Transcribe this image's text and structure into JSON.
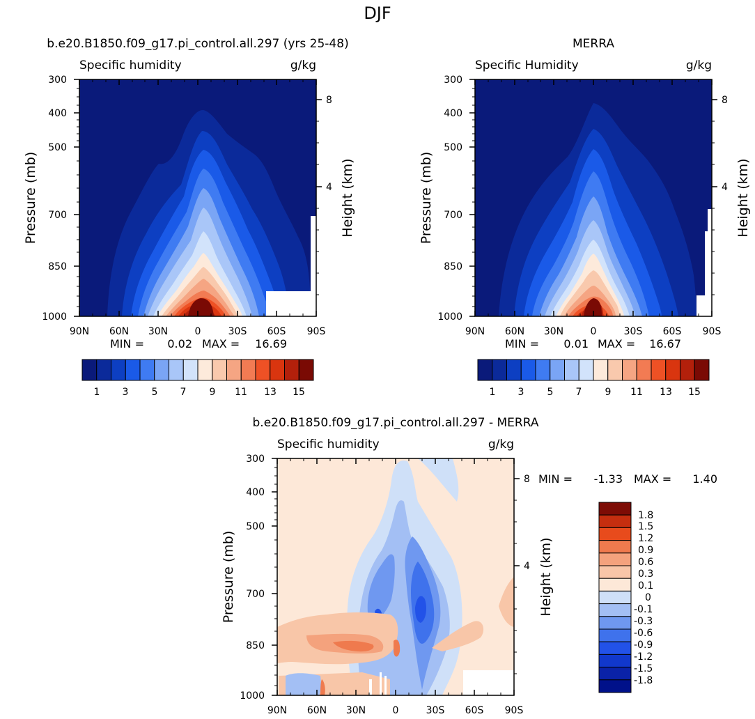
{
  "figure_title": "DJF",
  "colors": {
    "abs_palette": [
      "#0a1a7a",
      "#0b2a9a",
      "#0d3fc2",
      "#1a5ae8",
      "#3f7bf2",
      "#7aa5f5",
      "#a9c6f8",
      "#d2e3fb",
      "#fdeadb",
      "#f9c9ad",
      "#f5a583",
      "#f27b53",
      "#ee5125",
      "#d9350f",
      "#b3200b",
      "#7a0a04"
    ],
    "diff_palette": [
      "#00118a",
      "#0a22a8",
      "#1138cc",
      "#2252e8",
      "#3f72ec",
      "#6f98f0",
      "#a3bff4",
      "#cfe0f8",
      "#fde8d8",
      "#f8c6a8",
      "#f4a27d",
      "#ef7a4e",
      "#e84b1c",
      "#c52e0f",
      "#7d0c05"
    ]
  },
  "panels": [
    {
      "id": "model",
      "title": "b.e20.B1850.f09_g17.pi_control.all.297 (yrs 25-48)",
      "left_label": "Specific humidity",
      "right_label": "g/kg",
      "y_label": "Pressure (mb)",
      "y2_label": "Height (km)",
      "stats": {
        "min_label": "MIN =",
        "min": "0.02",
        "max_label": "MAX =",
        "max": "16.69"
      },
      "colorbar_ticks": [
        "1",
        "3",
        "5",
        "7",
        "9",
        "11",
        "13",
        "15"
      ]
    },
    {
      "id": "merra",
      "title": "MERRA",
      "left_label": "Specific Humidity",
      "right_label": "g/kg",
      "y_label": "Pressure (mb)",
      "y2_label": "Height (km)",
      "stats": {
        "min_label": "MIN =",
        "min": "0.01",
        "max_label": "MAX =",
        "max": "16.67"
      },
      "colorbar_ticks": [
        "1",
        "3",
        "5",
        "7",
        "9",
        "11",
        "13",
        "15"
      ]
    },
    {
      "id": "diff",
      "title": "b.e20.B1850.f09_g17.pi_control.all.297 - MERRA",
      "left_label": "Specific humidity",
      "right_label": "g/kg",
      "y_label": "Pressure (mb)",
      "y2_label": "Height (km)",
      "stats": {
        "min_label": "MIN =",
        "min": "-1.33",
        "max_label": "MAX =",
        "max": "1.40"
      },
      "colorbar_ticks": [
        "1.8",
        "1.5",
        "1.2",
        "0.9",
        "0.6",
        "0.3",
        "0.1",
        "0",
        "-0.1",
        "-0.3",
        "-0.6",
        "-0.9",
        "-1.2",
        "-1.5",
        "-1.8"
      ]
    }
  ],
  "chart_data": [
    {
      "type": "heatmap",
      "title": "b.e20.B1850.f09_g17.pi_control.all.297 (yrs 25-48)",
      "variable": "Specific humidity",
      "units": "g/kg",
      "xlabel": "",
      "ylabel": "Pressure (mb)",
      "y2label": "Height (km)",
      "x_ticks": [
        "90N",
        "60N",
        "30N",
        "0",
        "30S",
        "60S",
        "90S"
      ],
      "y_ticks": [
        300,
        400,
        500,
        700,
        850,
        1000
      ],
      "y2_ticks": [
        8,
        4
      ],
      "ylim": [
        1000,
        300
      ],
      "ylog": true,
      "levels": [
        1,
        2,
        3,
        4,
        5,
        6,
        7,
        8,
        9,
        10,
        11,
        12,
        13,
        14,
        15
      ],
      "min": 0.02,
      "max": 16.69
    },
    {
      "type": "heatmap",
      "title": "MERRA",
      "variable": "Specific Humidity",
      "units": "g/kg",
      "xlabel": "",
      "ylabel": "Pressure (mb)",
      "y2label": "Height (km)",
      "x_ticks": [
        "90N",
        "60N",
        "30N",
        "0",
        "30S",
        "60S",
        "90S"
      ],
      "y_ticks": [
        300,
        400,
        500,
        700,
        850,
        1000
      ],
      "y2_ticks": [
        8,
        4
      ],
      "ylim": [
        1000,
        300
      ],
      "ylog": true,
      "levels": [
        1,
        2,
        3,
        4,
        5,
        6,
        7,
        8,
        9,
        10,
        11,
        12,
        13,
        14,
        15
      ],
      "min": 0.01,
      "max": 16.67
    },
    {
      "type": "heatmap",
      "title": "b.e20.B1850.f09_g17.pi_control.all.297 - MERRA",
      "variable": "Specific humidity",
      "units": "g/kg",
      "xlabel": "",
      "ylabel": "Pressure (mb)",
      "y2label": "Height (km)",
      "x_ticks": [
        "90N",
        "60N",
        "30N",
        "0",
        "30S",
        "60S",
        "90S"
      ],
      "y_ticks": [
        300,
        400,
        500,
        700,
        850,
        1000
      ],
      "y2_ticks": [
        8,
        4
      ],
      "ylim": [
        1000,
        300
      ],
      "ylog": true,
      "levels": [
        -1.8,
        -1.5,
        -1.2,
        -0.9,
        -0.6,
        -0.3,
        -0.1,
        0,
        0.1,
        0.3,
        0.6,
        0.9,
        1.2,
        1.5,
        1.8
      ],
      "min": -1.33,
      "max": 1.4
    }
  ]
}
